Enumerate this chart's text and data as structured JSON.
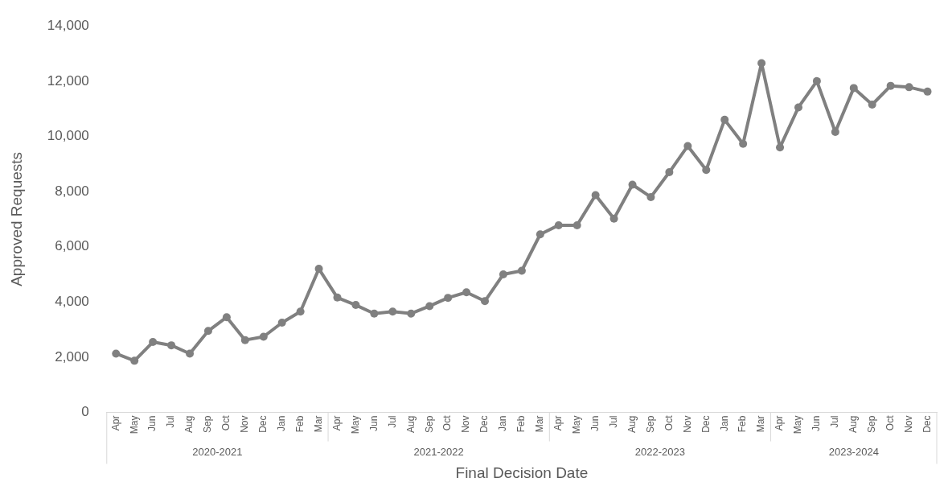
{
  "chart_data": {
    "type": "line",
    "xlabel": "Final Decision Date",
    "ylabel": "Approved Requests",
    "categories": [
      "Apr",
      "May",
      "Jun",
      "Jul",
      "Aug",
      "Sep",
      "Oct",
      "Nov",
      "Dec",
      "Jan",
      "Feb",
      "Mar",
      "Apr",
      "May",
      "Jun",
      "Jul",
      "Aug",
      "Sep",
      "Oct",
      "Nov",
      "Dec",
      "Jan",
      "Feb",
      "Mar",
      "Apr",
      "May",
      "Jun",
      "Jul",
      "Aug",
      "Sep",
      "Oct",
      "Nov",
      "Dec",
      "Jan",
      "Feb",
      "Mar",
      "Apr",
      "May",
      "Jun",
      "Jul",
      "Aug",
      "Sep",
      "Oct",
      "Nov",
      "Dec"
    ],
    "series": [
      {
        "color": "#808080",
        "values": [
          2130,
          1870,
          2550,
          2430,
          2130,
          2950,
          3450,
          2620,
          2740,
          3250,
          3650,
          5200,
          4160,
          3890,
          3580,
          3650,
          3580,
          3850,
          4150,
          4350,
          4030,
          5000,
          5130,
          6450,
          6780,
          6780,
          7870,
          7020,
          8250,
          7800,
          8700,
          9650,
          8780,
          10600,
          9730,
          12650,
          9600,
          11050,
          12000,
          10160,
          11750,
          11150,
          11830,
          11780,
          11620
        ]
      }
    ],
    "annotations": [
      "2020-2021",
      "2021-2022",
      "2022-2023",
      "2023-2024"
    ],
    "ylim": [
      0,
      14000
    ],
    "yticks": [
      0,
      {
        "value": 2000,
        "label": "2,000"
      },
      {
        "value": 4000,
        "label": "4,000"
      },
      {
        "value": 6000,
        "label": "6,000"
      },
      {
        "value": 8000,
        "label": "8,000"
      },
      {
        "value": 10000,
        "label": "10,000"
      },
      {
        "value": 12000,
        "label": "12,000"
      },
      {
        "value": 14000,
        "label": "14,000"
      }
    ],
    "grid": false,
    "legend": false,
    "marker": "circle",
    "line_style": "solid"
  }
}
